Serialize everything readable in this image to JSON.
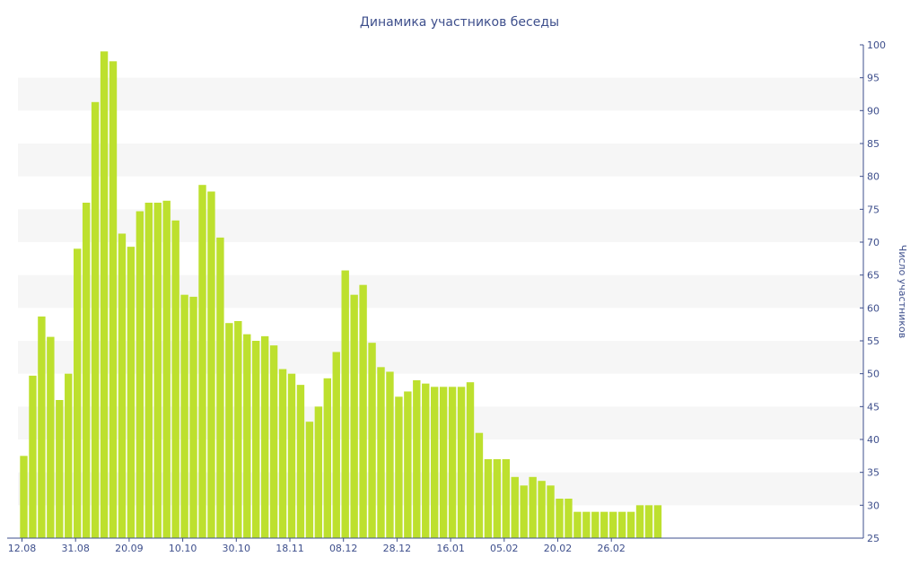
{
  "chart_data": {
    "type": "bar",
    "title": "Динамика участников беседы",
    "xlabel": "",
    "ylabel": "Число участников",
    "ylim": [
      25,
      100
    ],
    "yticks": [
      25,
      30,
      35,
      40,
      45,
      50,
      55,
      60,
      65,
      70,
      75,
      80,
      85,
      90,
      95,
      100
    ],
    "y_axis_position": "right",
    "grid": "alternating horizontal bands",
    "colors": {
      "bar": "#bde02e",
      "text": "#3e4f8c",
      "band": "#f6f6f6"
    },
    "x_tick_labels": [
      {
        "label": "12.08",
        "index": 0
      },
      {
        "label": "31.08",
        "index": 6
      },
      {
        "label": "20.09",
        "index": 12
      },
      {
        "label": "10.10",
        "index": 18
      },
      {
        "label": "30.10",
        "index": 24
      },
      {
        "label": "18.11",
        "index": 30
      },
      {
        "label": "08.12",
        "index": 36
      },
      {
        "label": "28.12",
        "index": 42
      },
      {
        "label": "16.01",
        "index": 48
      },
      {
        "label": "05.02",
        "index": 54
      },
      {
        "label": "20.02",
        "index": 60
      },
      {
        "label": "26.02",
        "index": 66
      }
    ],
    "values": [
      37.5,
      49.7,
      58.7,
      55.6,
      46,
      50,
      69,
      76,
      91.3,
      99,
      97.5,
      71.3,
      69.3,
      74.7,
      76,
      76,
      76.3,
      73.3,
      62,
      61.7,
      78.7,
      77.7,
      70.7,
      57.7,
      58,
      56,
      55,
      55.7,
      54.3,
      50.7,
      50,
      48.3,
      42.7,
      45,
      49.3,
      53.3,
      65.7,
      62,
      63.5,
      54.7,
      51,
      50.3,
      46.5,
      47.3,
      49,
      48.5,
      48,
      48,
      48,
      48,
      48.7,
      41,
      37,
      37,
      37,
      34.3,
      33,
      34.3,
      33.7,
      33,
      31,
      31,
      29,
      29,
      29,
      29,
      29,
      29,
      29,
      30,
      30,
      30
    ]
  }
}
